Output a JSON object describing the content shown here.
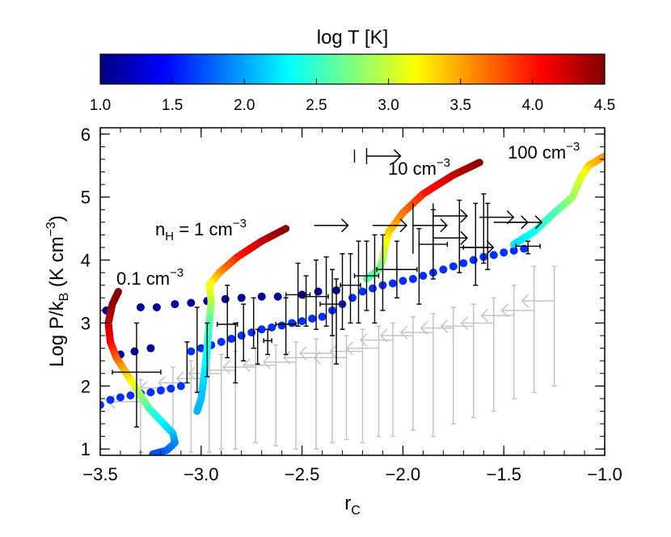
{
  "chart_data": {
    "type": "scatter",
    "xlabel": "r",
    "xlabel_sub": "C",
    "ylabel": "Log P/k",
    "ylabel_sub": "B",
    "ylabel_unit": " (K cm",
    "ylabel_unit_sup": "−3",
    "ylabel_close": ")",
    "xlim": [
      -3.5,
      -1.0
    ],
    "ylim": [
      0.9,
      6.1
    ],
    "xticks": [
      -3.5,
      -3.0,
      -2.5,
      -2.0,
      -1.5,
      -1.0
    ],
    "xtick_labels": [
      "−3.5",
      "−3.0",
      "−2.5",
      "−2.0",
      "−1.5",
      "−1.0"
    ],
    "yticks": [
      1,
      2,
      3,
      4,
      5,
      6
    ],
    "ytick_labels": [
      "1",
      "2",
      "3",
      "4",
      "5",
      "6"
    ],
    "colorbar": {
      "title": "log T [K]",
      "range": [
        1.0,
        4.5
      ],
      "ticks": [
        1.0,
        1.5,
        2.0,
        2.5,
        3.0,
        3.5,
        4.0,
        4.5
      ],
      "tick_labels": [
        "1.0",
        "1.5",
        "2.0",
        "2.5",
        "3.0",
        "3.5",
        "4.0",
        "4.5"
      ],
      "colormap": "jet"
    },
    "curves": [
      {
        "label_prefix": "",
        "label_main": "0.1 cm",
        "label_sup": "−3",
        "points": [
          [
            -3.41,
            3.5
          ],
          [
            -3.44,
            3.3
          ],
          [
            -3.46,
            3.0
          ],
          [
            -3.45,
            2.7
          ],
          [
            -3.42,
            2.45
          ],
          [
            -3.38,
            2.25
          ],
          [
            -3.34,
            2.05
          ],
          [
            -3.3,
            1.85
          ],
          [
            -3.26,
            1.65
          ],
          [
            -3.2,
            1.45
          ],
          [
            -3.14,
            1.25
          ],
          [
            -3.13,
            1.1
          ],
          [
            -3.17,
            0.98
          ],
          [
            -3.24,
            0.92
          ]
        ],
        "logT": [
          4.5,
          4.45,
          4.3,
          4.1,
          3.8,
          3.5,
          3.2,
          2.9,
          2.6,
          2.35,
          2.15,
          1.95,
          1.8,
          1.7
        ]
      },
      {
        "label_prefix": "n",
        "label_prefix_sub": "H",
        "label_main": " = 1 cm",
        "label_sup": "−3",
        "points": [
          [
            -2.58,
            4.5
          ],
          [
            -2.7,
            4.3
          ],
          [
            -2.82,
            4.05
          ],
          [
            -2.91,
            3.8
          ],
          [
            -2.96,
            3.6
          ],
          [
            -2.95,
            3.35
          ],
          [
            -2.96,
            3.0
          ],
          [
            -2.97,
            2.6
          ],
          [
            -2.98,
            2.3
          ],
          [
            -2.99,
            2.05
          ],
          [
            -3.0,
            1.8
          ],
          [
            -3.02,
            1.6
          ]
        ],
        "logT": [
          4.5,
          4.3,
          4.0,
          3.6,
          3.2,
          3.0,
          2.6,
          2.4,
          2.3,
          2.2,
          2.1,
          2.05
        ]
      },
      {
        "label_prefix": "",
        "label_main": "10 cm",
        "label_sup": "−3",
        "points": [
          [
            -1.62,
            5.55
          ],
          [
            -1.75,
            5.35
          ],
          [
            -1.9,
            5.05
          ],
          [
            -2.0,
            4.75
          ],
          [
            -2.07,
            4.45
          ],
          [
            -2.09,
            4.2
          ],
          [
            -2.1,
            4.0
          ],
          [
            -2.12,
            3.85
          ],
          [
            -2.18,
            3.7
          ]
        ],
        "logT": [
          4.5,
          4.3,
          4.0,
          3.7,
          3.4,
          3.1,
          2.9,
          2.7,
          2.6
        ]
      },
      {
        "label_prefix": "",
        "label_main": "100 cm",
        "label_sup": "−3",
        "points": [
          [
            -1.0,
            5.65
          ],
          [
            -1.08,
            5.5
          ],
          [
            -1.12,
            5.3
          ],
          [
            -1.16,
            5.0
          ],
          [
            -1.25,
            4.75
          ],
          [
            -1.35,
            4.45
          ],
          [
            -1.45,
            4.25
          ]
        ],
        "logT": [
          3.6,
          3.4,
          3.1,
          2.9,
          2.6,
          2.4,
          2.2
        ]
      }
    ],
    "equilibrium_points_dark": {
      "logT": 1.1,
      "points": [
        [
          -3.47,
          3.2
        ],
        [
          -3.4,
          2.5
        ],
        [
          -3.33,
          2.55
        ],
        [
          -3.25,
          2.6
        ],
        [
          -3.3,
          3.25
        ],
        [
          -3.22,
          3.25
        ],
        [
          -3.13,
          3.3
        ],
        [
          -3.05,
          3.32
        ],
        [
          -2.97,
          3.35
        ],
        [
          -2.88,
          3.38
        ],
        [
          -2.8,
          3.4
        ],
        [
          -2.7,
          3.42
        ],
        [
          -2.62,
          3.42
        ],
        [
          -2.5,
          3.45
        ],
        [
          -2.42,
          3.5
        ],
        [
          -2.33,
          3.52
        ]
      ]
    },
    "equilibrium_points_light": {
      "logT": 1.6,
      "points": [
        [
          -3.5,
          1.7
        ],
        [
          -3.45,
          1.78
        ],
        [
          -3.4,
          1.82
        ],
        [
          -3.35,
          1.85
        ],
        [
          -3.3,
          1.88
        ],
        [
          -3.25,
          1.9
        ],
        [
          -3.2,
          1.93
        ],
        [
          -3.15,
          1.96
        ],
        [
          -3.1,
          2.0
        ],
        [
          -3.05,
          2.55
        ],
        [
          -3.0,
          2.6
        ],
        [
          -2.95,
          2.65
        ],
        [
          -2.9,
          2.7
        ],
        [
          -2.85,
          2.75
        ],
        [
          -2.8,
          2.8
        ],
        [
          -2.75,
          2.85
        ],
        [
          -2.7,
          2.9
        ],
        [
          -2.65,
          2.93
        ],
        [
          -2.6,
          2.96
        ],
        [
          -2.55,
          3.0
        ],
        [
          -2.5,
          3.03
        ],
        [
          -2.45,
          3.07
        ],
        [
          -2.4,
          3.1
        ],
        [
          -2.35,
          3.2
        ],
        [
          -2.3,
          3.3
        ],
        [
          -2.25,
          3.4
        ],
        [
          -2.2,
          3.5
        ],
        [
          -2.15,
          3.55
        ],
        [
          -2.1,
          3.6
        ],
        [
          -2.05,
          3.63
        ],
        [
          -2.0,
          3.67
        ],
        [
          -1.95,
          3.7
        ],
        [
          -1.9,
          3.75
        ],
        [
          -1.85,
          3.8
        ],
        [
          -1.8,
          3.85
        ],
        [
          -1.75,
          3.9
        ],
        [
          -1.7,
          3.95
        ],
        [
          -1.65,
          4.0
        ],
        [
          -1.6,
          4.05
        ],
        [
          -1.55,
          4.08
        ],
        [
          -1.5,
          4.12
        ],
        [
          -1.45,
          4.15
        ],
        [
          -1.4,
          4.18
        ]
      ]
    },
    "detections": [
      {
        "x": -3.32,
        "y": 2.22,
        "xerr": 0.12,
        "ylo": 1.35,
        "yhi": 3.0
      },
      {
        "x": -3.07,
        "y": 2.4,
        "ylo": 2.05,
        "yhi": 2.7
      },
      {
        "x": -3.02,
        "y": 2.62,
        "ylo": 1.9,
        "yhi": 3.25
      },
      {
        "x": -2.97,
        "y": 2.55,
        "ylo": 2.15,
        "yhi": 3.0
      },
      {
        "x": -2.87,
        "y": 2.98,
        "xerr": 0.05,
        "ylo": 2.45,
        "yhi": 3.6
      },
      {
        "x": -2.83,
        "y": 2.5,
        "ylo": 2.05,
        "yhi": 3.0
      },
      {
        "x": -2.79,
        "y": 2.82,
        "ylo": 2.4,
        "yhi": 3.3
      },
      {
        "x": -2.74,
        "y": 2.98,
        "ylo": 2.6,
        "yhi": 3.4
      },
      {
        "x": -2.72,
        "y": 2.65,
        "ylo": 2.35,
        "yhi": 2.9
      },
      {
        "x": -2.67,
        "y": 2.72,
        "xerr": 0.02,
        "ylo": 2.5,
        "yhi": 2.9
      },
      {
        "x": -2.58,
        "y": 2.98,
        "xerr": 0.05,
        "ylo": 2.5,
        "yhi": 3.4
      },
      {
        "x": -2.52,
        "y": 3.45,
        "xerr": 0.06,
        "ylo": 2.95,
        "yhi": 3.95
      },
      {
        "x": -2.48,
        "y": 3.35,
        "ylo": 2.95,
        "yhi": 3.75
      },
      {
        "x": -2.43,
        "y": 3.42,
        "xerr": 0.06,
        "ylo": 2.9,
        "yhi": 4.0
      },
      {
        "x": -2.38,
        "y": 3.55,
        "ylo": 2.95,
        "yhi": 4.05
      },
      {
        "x": -2.35,
        "y": 3.3,
        "xerr": 0.06,
        "ylo": 2.8,
        "yhi": 3.85
      },
      {
        "x": -2.33,
        "y": 3.0,
        "ylo": 2.35,
        "yhi": 3.7
      },
      {
        "x": -2.3,
        "y": 3.5,
        "ylo": 2.9,
        "yhi": 4.1
      },
      {
        "x": -2.26,
        "y": 3.6,
        "xerr": 0.05,
        "ylo": 3.0,
        "yhi": 4.1
      },
      {
        "x": -2.22,
        "y": 3.65,
        "ylo": 3.0,
        "yhi": 4.3
      },
      {
        "x": -2.18,
        "y": 3.75,
        "xerr": 0.06,
        "ylo": 3.2,
        "yhi": 4.3
      },
      {
        "x": -2.14,
        "y": 3.7,
        "ylo": 3.0,
        "yhi": 4.4
      },
      {
        "x": -2.1,
        "y": 3.82,
        "ylo": 3.2,
        "yhi": 4.4
      },
      {
        "x": -2.03,
        "y": 3.85,
        "xerr": 0.1,
        "ylo": 3.4,
        "yhi": 4.3
      },
      {
        "x": -1.92,
        "y": 3.85,
        "ylo": 3.3,
        "yhi": 4.5
      },
      {
        "x": -1.85,
        "y": 4.25,
        "xerr": 0.07,
        "ylo": 3.7,
        "yhi": 4.8
      },
      {
        "x": -1.72,
        "y": 4.4,
        "ylo": 3.8,
        "yhi": 4.95
      },
      {
        "x": -1.64,
        "y": 4.2,
        "xerr": 0.06,
        "ylo": 3.6,
        "yhi": 4.9
      },
      {
        "x": -1.6,
        "y": 4.52,
        "ylo": 3.95,
        "yhi": 5.05
      },
      {
        "x": -1.58,
        "y": 4.4,
        "ylo": 3.85,
        "yhi": 4.9
      },
      {
        "x": -1.38,
        "y": 4.22,
        "xerr": 0.06,
        "ylo": 4.1,
        "yhi": 4.3
      }
    ],
    "lower_limits": [
      {
        "x": -2.18,
        "y": 5.65,
        "xerr": 0.06
      },
      {
        "x": -2.44,
        "y": 4.55
      },
      {
        "x": -2.15,
        "y": 4.55
      },
      {
        "x": -1.95,
        "y": 4.55,
        "ylo": 4.1,
        "yhi": 4.9
      },
      {
        "x": -1.85,
        "y": 4.7
      },
      {
        "x": -1.62,
        "y": 4.68
      },
      {
        "x": -1.55,
        "y": 4.6
      },
      {
        "x": -1.48,
        "y": 4.6
      },
      {
        "x": -1.85,
        "y": 4.35,
        "ylo": 4.0,
        "yhi": 4.9
      },
      {
        "x": -1.72,
        "y": 4.2,
        "ylo": 3.8,
        "yhi": 4.6
      }
    ],
    "upper_limits": [
      {
        "x": -2.96,
        "y": 2.12,
        "ylo": 0.95,
        "yhi": 2.45
      },
      {
        "x": -2.9,
        "y": 2.2,
        "ylo": 1.0,
        "yhi": 2.5
      },
      {
        "x": -2.83,
        "y": 2.25,
        "ylo": 1.0,
        "yhi": 2.55
      },
      {
        "x": -2.73,
        "y": 2.3,
        "ylo": 1.1,
        "yhi": 2.6
      },
      {
        "x": -2.63,
        "y": 2.33,
        "ylo": 1.05,
        "yhi": 2.65
      },
      {
        "x": -2.53,
        "y": 2.38,
        "ylo": 1.0,
        "yhi": 2.7
      },
      {
        "x": -2.43,
        "y": 2.45,
        "ylo": 1.0,
        "yhi": 2.75
      },
      {
        "x": -2.35,
        "y": 2.52,
        "ylo": 1.1,
        "yhi": 2.8
      },
      {
        "x": -2.28,
        "y": 2.45,
        "ylo": 1.15,
        "yhi": 2.8
      },
      {
        "x": -2.2,
        "y": 2.55,
        "ylo": 1.1,
        "yhi": 2.9
      },
      {
        "x": -2.12,
        "y": 2.6,
        "ylo": 1.2,
        "yhi": 2.95
      },
      {
        "x": -2.05,
        "y": 2.73,
        "ylo": 1.2,
        "yhi": 3.0
      },
      {
        "x": -1.95,
        "y": 2.8,
        "ylo": 1.3,
        "yhi": 3.1
      },
      {
        "x": -1.85,
        "y": 2.85,
        "ylo": 1.2,
        "yhi": 3.15
      },
      {
        "x": -1.75,
        "y": 2.92,
        "ylo": 1.4,
        "yhi": 3.25
      },
      {
        "x": -1.65,
        "y": 2.95,
        "ylo": 1.5,
        "yhi": 3.3
      },
      {
        "x": -1.55,
        "y": 3.0,
        "ylo": 1.6,
        "yhi": 3.4
      },
      {
        "x": -1.45,
        "y": 3.12,
        "ylo": 1.8,
        "yhi": 3.6
      },
      {
        "x": -1.35,
        "y": 3.2,
        "ylo": 1.9,
        "yhi": 3.9
      },
      {
        "x": -1.25,
        "y": 3.35,
        "ylo": 2.0,
        "yhi": 3.9
      },
      {
        "x": -3.3,
        "y": 1.75,
        "ylo": 0.95,
        "yhi": 2.1
      },
      {
        "x": -3.14,
        "y": 1.97,
        "ylo": 1.0,
        "yhi": 2.3
      },
      {
        "x": -3.05,
        "y": 2.05,
        "ylo": 0.95,
        "yhi": 2.4
      }
    ]
  }
}
